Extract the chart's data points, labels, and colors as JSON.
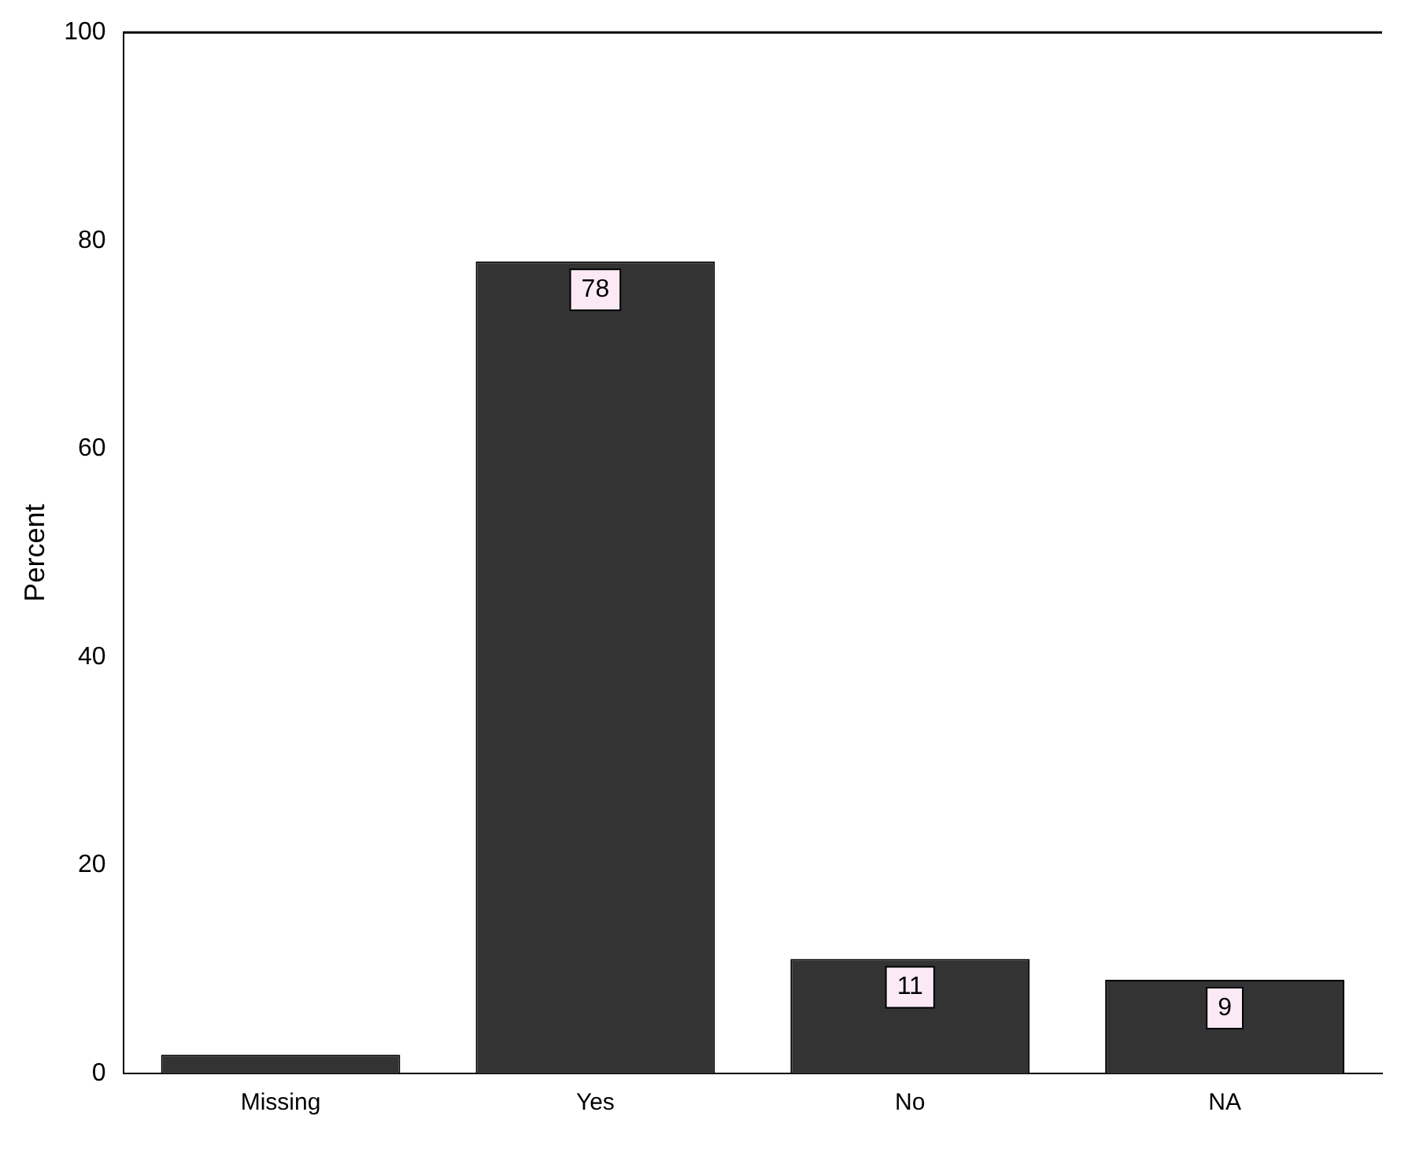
{
  "chart_data": {
    "type": "bar",
    "ylabel": "Percent",
    "categories": [
      "Missing",
      "Yes",
      "No",
      "NA"
    ],
    "values": [
      1.8,
      78,
      11,
      9
    ],
    "value_labels": [
      null,
      "78",
      "11",
      "9"
    ],
    "color": "#333333",
    "ylim": [
      0,
      100
    ],
    "yticks": [
      0,
      20,
      40,
      60,
      80,
      100
    ],
    "grid": false,
    "legend": false
  }
}
